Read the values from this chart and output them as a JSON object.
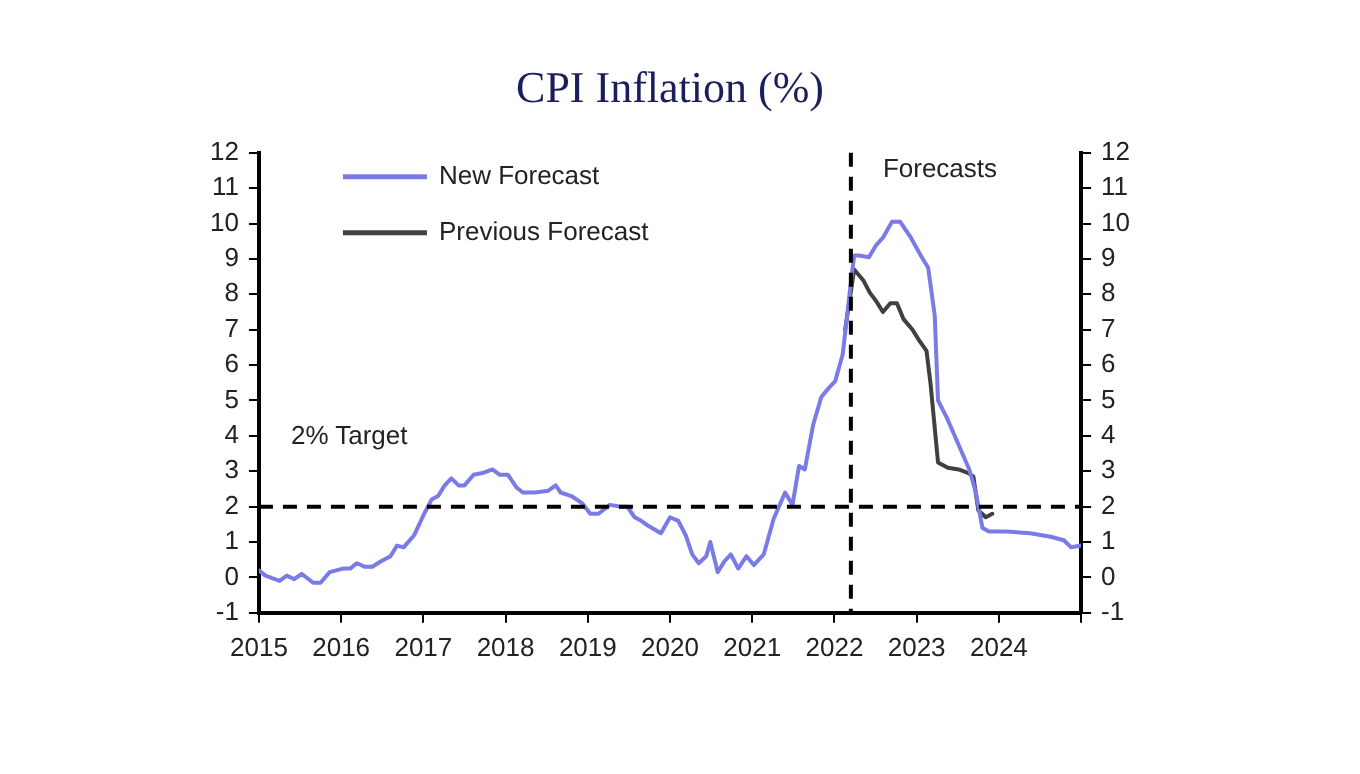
{
  "chart_data": {
    "type": "line",
    "title": "CPI Inflation (%)",
    "xlim": [
      2015,
      2025
    ],
    "xticks": [
      {
        "value": 2015,
        "label": "2015"
      },
      {
        "value": 2016,
        "label": "2016"
      },
      {
        "value": 2017,
        "label": "2017"
      },
      {
        "value": 2018,
        "label": "2018"
      },
      {
        "value": 2019,
        "label": "2019"
      },
      {
        "value": 2020,
        "label": "2020"
      },
      {
        "value": 2021,
        "label": "2021"
      },
      {
        "value": 2022,
        "label": "2022"
      },
      {
        "value": 2023,
        "label": "2023"
      },
      {
        "value": 2024,
        "label": "2024"
      },
      {
        "value": 2025,
        "label": null
      }
    ],
    "ylim": [
      -1,
      12
    ],
    "yticks": [
      -1,
      0,
      1,
      2,
      3,
      4,
      5,
      6,
      7,
      8,
      9,
      10,
      11,
      12
    ],
    "y2lim": [
      -1,
      12
    ],
    "y2ticks": [
      -1,
      0,
      1,
      2,
      3,
      4,
      5,
      6,
      7,
      8,
      9,
      10,
      11,
      12
    ],
    "grid": false,
    "legend": "top left",
    "line_style": "solid",
    "marker": "none",
    "series": [
      {
        "name": "New Forecast",
        "color": "#7b7be8",
        "x": [
          2015.0,
          2015.08,
          2015.25,
          2015.34,
          2015.43,
          2015.52,
          2015.66,
          2015.75,
          2015.86,
          2016.02,
          2016.11,
          2016.19,
          2016.29,
          2016.38,
          2016.48,
          2016.6,
          2016.68,
          2016.76,
          2016.89,
          2017.01,
          2017.1,
          2017.18,
          2017.26,
          2017.34,
          2017.43,
          2017.5,
          2017.61,
          2017.72,
          2017.84,
          2017.93,
          2018.03,
          2018.13,
          2018.21,
          2018.36,
          2018.52,
          2018.61,
          2018.67,
          2018.8,
          2018.93,
          2019.03,
          2019.13,
          2019.27,
          2019.4,
          2019.48,
          2019.57,
          2019.65,
          2019.74,
          2019.89,
          2020.0,
          2020.1,
          2020.19,
          2020.27,
          2020.35,
          2020.44,
          2020.49,
          2020.58,
          2020.66,
          2020.74,
          2020.83,
          2020.93,
          2021.02,
          2021.14,
          2021.26,
          2021.4,
          2021.49,
          2021.57,
          2021.64,
          2021.74,
          2021.84,
          2021.93,
          2022.01,
          2022.1,
          2022.15,
          2022.2,
          2022.24,
          2022.3,
          2022.42,
          2022.51,
          2022.59,
          2022.7,
          2022.8,
          2022.93,
          2023.05,
          2023.14,
          2023.22,
          2023.26,
          2023.37,
          2023.51,
          2023.64,
          2023.72,
          2023.8,
          2023.88,
          2024.09,
          2024.38,
          2024.63,
          2024.79,
          2024.88,
          2025.0
        ],
        "values": [
          0.2,
          0.05,
          -0.1,
          0.05,
          -0.05,
          0.1,
          -0.15,
          -0.15,
          0.15,
          0.25,
          0.25,
          0.4,
          0.3,
          0.3,
          0.45,
          0.6,
          0.9,
          0.85,
          1.2,
          1.8,
          2.2,
          2.3,
          2.6,
          2.8,
          2.6,
          2.6,
          2.9,
          2.95,
          3.05,
          2.9,
          2.9,
          2.55,
          2.4,
          2.4,
          2.45,
          2.6,
          2.4,
          2.3,
          2.1,
          1.8,
          1.8,
          2.05,
          2.0,
          2.0,
          1.7,
          1.6,
          1.45,
          1.25,
          1.7,
          1.6,
          1.2,
          0.65,
          0.4,
          0.6,
          1.0,
          0.15,
          0.45,
          0.65,
          0.25,
          0.6,
          0.35,
          0.65,
          1.65,
          2.4,
          2.05,
          3.15,
          3.05,
          4.3,
          5.1,
          5.35,
          5.55,
          6.3,
          7.3,
          8.35,
          9.1,
          9.1,
          9.05,
          9.4,
          9.6,
          10.05,
          10.05,
          9.6,
          9.1,
          8.75,
          7.4,
          5.0,
          4.5,
          3.75,
          3.05,
          2.4,
          1.4,
          1.3,
          1.3,
          1.25,
          1.15,
          1.05,
          0.85,
          0.9
        ]
      },
      {
        "name": "Previous Forecast",
        "color": "#404040",
        "x": [
          2022.13,
          2022.24,
          2022.35,
          2022.43,
          2022.51,
          2022.59,
          2022.68,
          2022.76,
          2022.84,
          2022.95,
          2023.03,
          2023.12,
          2023.17,
          2023.26,
          2023.38,
          2023.51,
          2023.63,
          2023.69,
          2023.75,
          2023.84,
          2023.92
        ],
        "values": [
          7.0,
          8.7,
          8.4,
          8.05,
          7.8,
          7.5,
          7.75,
          7.75,
          7.3,
          7.0,
          6.7,
          6.4,
          5.45,
          3.25,
          3.1,
          3.05,
          2.95,
          2.85,
          1.9,
          1.7,
          1.8
        ]
      }
    ],
    "ref_lines": [
      {
        "axis": "y",
        "value": 2,
        "label": "2% Target",
        "color": "#000000",
        "line_style": "dashed"
      },
      {
        "axis": "x",
        "value": 2022.2,
        "label": "Forecasts",
        "color": "#000000",
        "line_style": "dashed"
      }
    ]
  }
}
